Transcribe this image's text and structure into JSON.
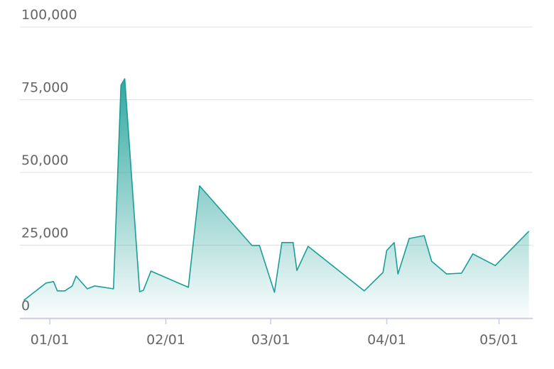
{
  "chart_data": {
    "type": "area",
    "color": "#1a9e96",
    "x": [
      "12/25",
      "12/31",
      "01/02",
      "01/03",
      "01/05",
      "01/07",
      "01/08",
      "01/11",
      "01/13",
      "01/18",
      "01/20",
      "01/21",
      "01/25",
      "01/26",
      "01/28",
      "02/07",
      "02/10",
      "02/24",
      "02/26",
      "03/02",
      "03/04",
      "03/07",
      "03/08",
      "03/11",
      "03/26",
      "03/31",
      "04/01",
      "04/03",
      "04/04",
      "04/07",
      "04/11",
      "04/13",
      "04/17",
      "04/21",
      "04/24",
      "04/30",
      "05/09"
    ],
    "values": [
      6000,
      12000,
      12500,
      9300,
      9300,
      11000,
      14400,
      10000,
      11000,
      10000,
      80000,
      82200,
      9000,
      9500,
      16100,
      10500,
      45400,
      24900,
      24900,
      8800,
      25900,
      25900,
      16300,
      24600,
      9300,
      15600,
      23200,
      25900,
      15100,
      27300,
      28300,
      19500,
      15100,
      15400,
      22000,
      18000,
      29800
    ],
    "xlim": [
      "12/24",
      "05/10"
    ],
    "xticks": [
      "01/01",
      "02/01",
      "03/01",
      "04/01",
      "05/01"
    ],
    "ylim": [
      0,
      100000
    ],
    "yticks": [
      0,
      {
        "value": 25000,
        "label": "25,000"
      },
      {
        "value": 50000,
        "label": "50,000"
      },
      {
        "value": 75000,
        "label": "75,000"
      },
      {
        "value": 100000,
        "label": "100,000"
      }
    ],
    "grid": true
  }
}
